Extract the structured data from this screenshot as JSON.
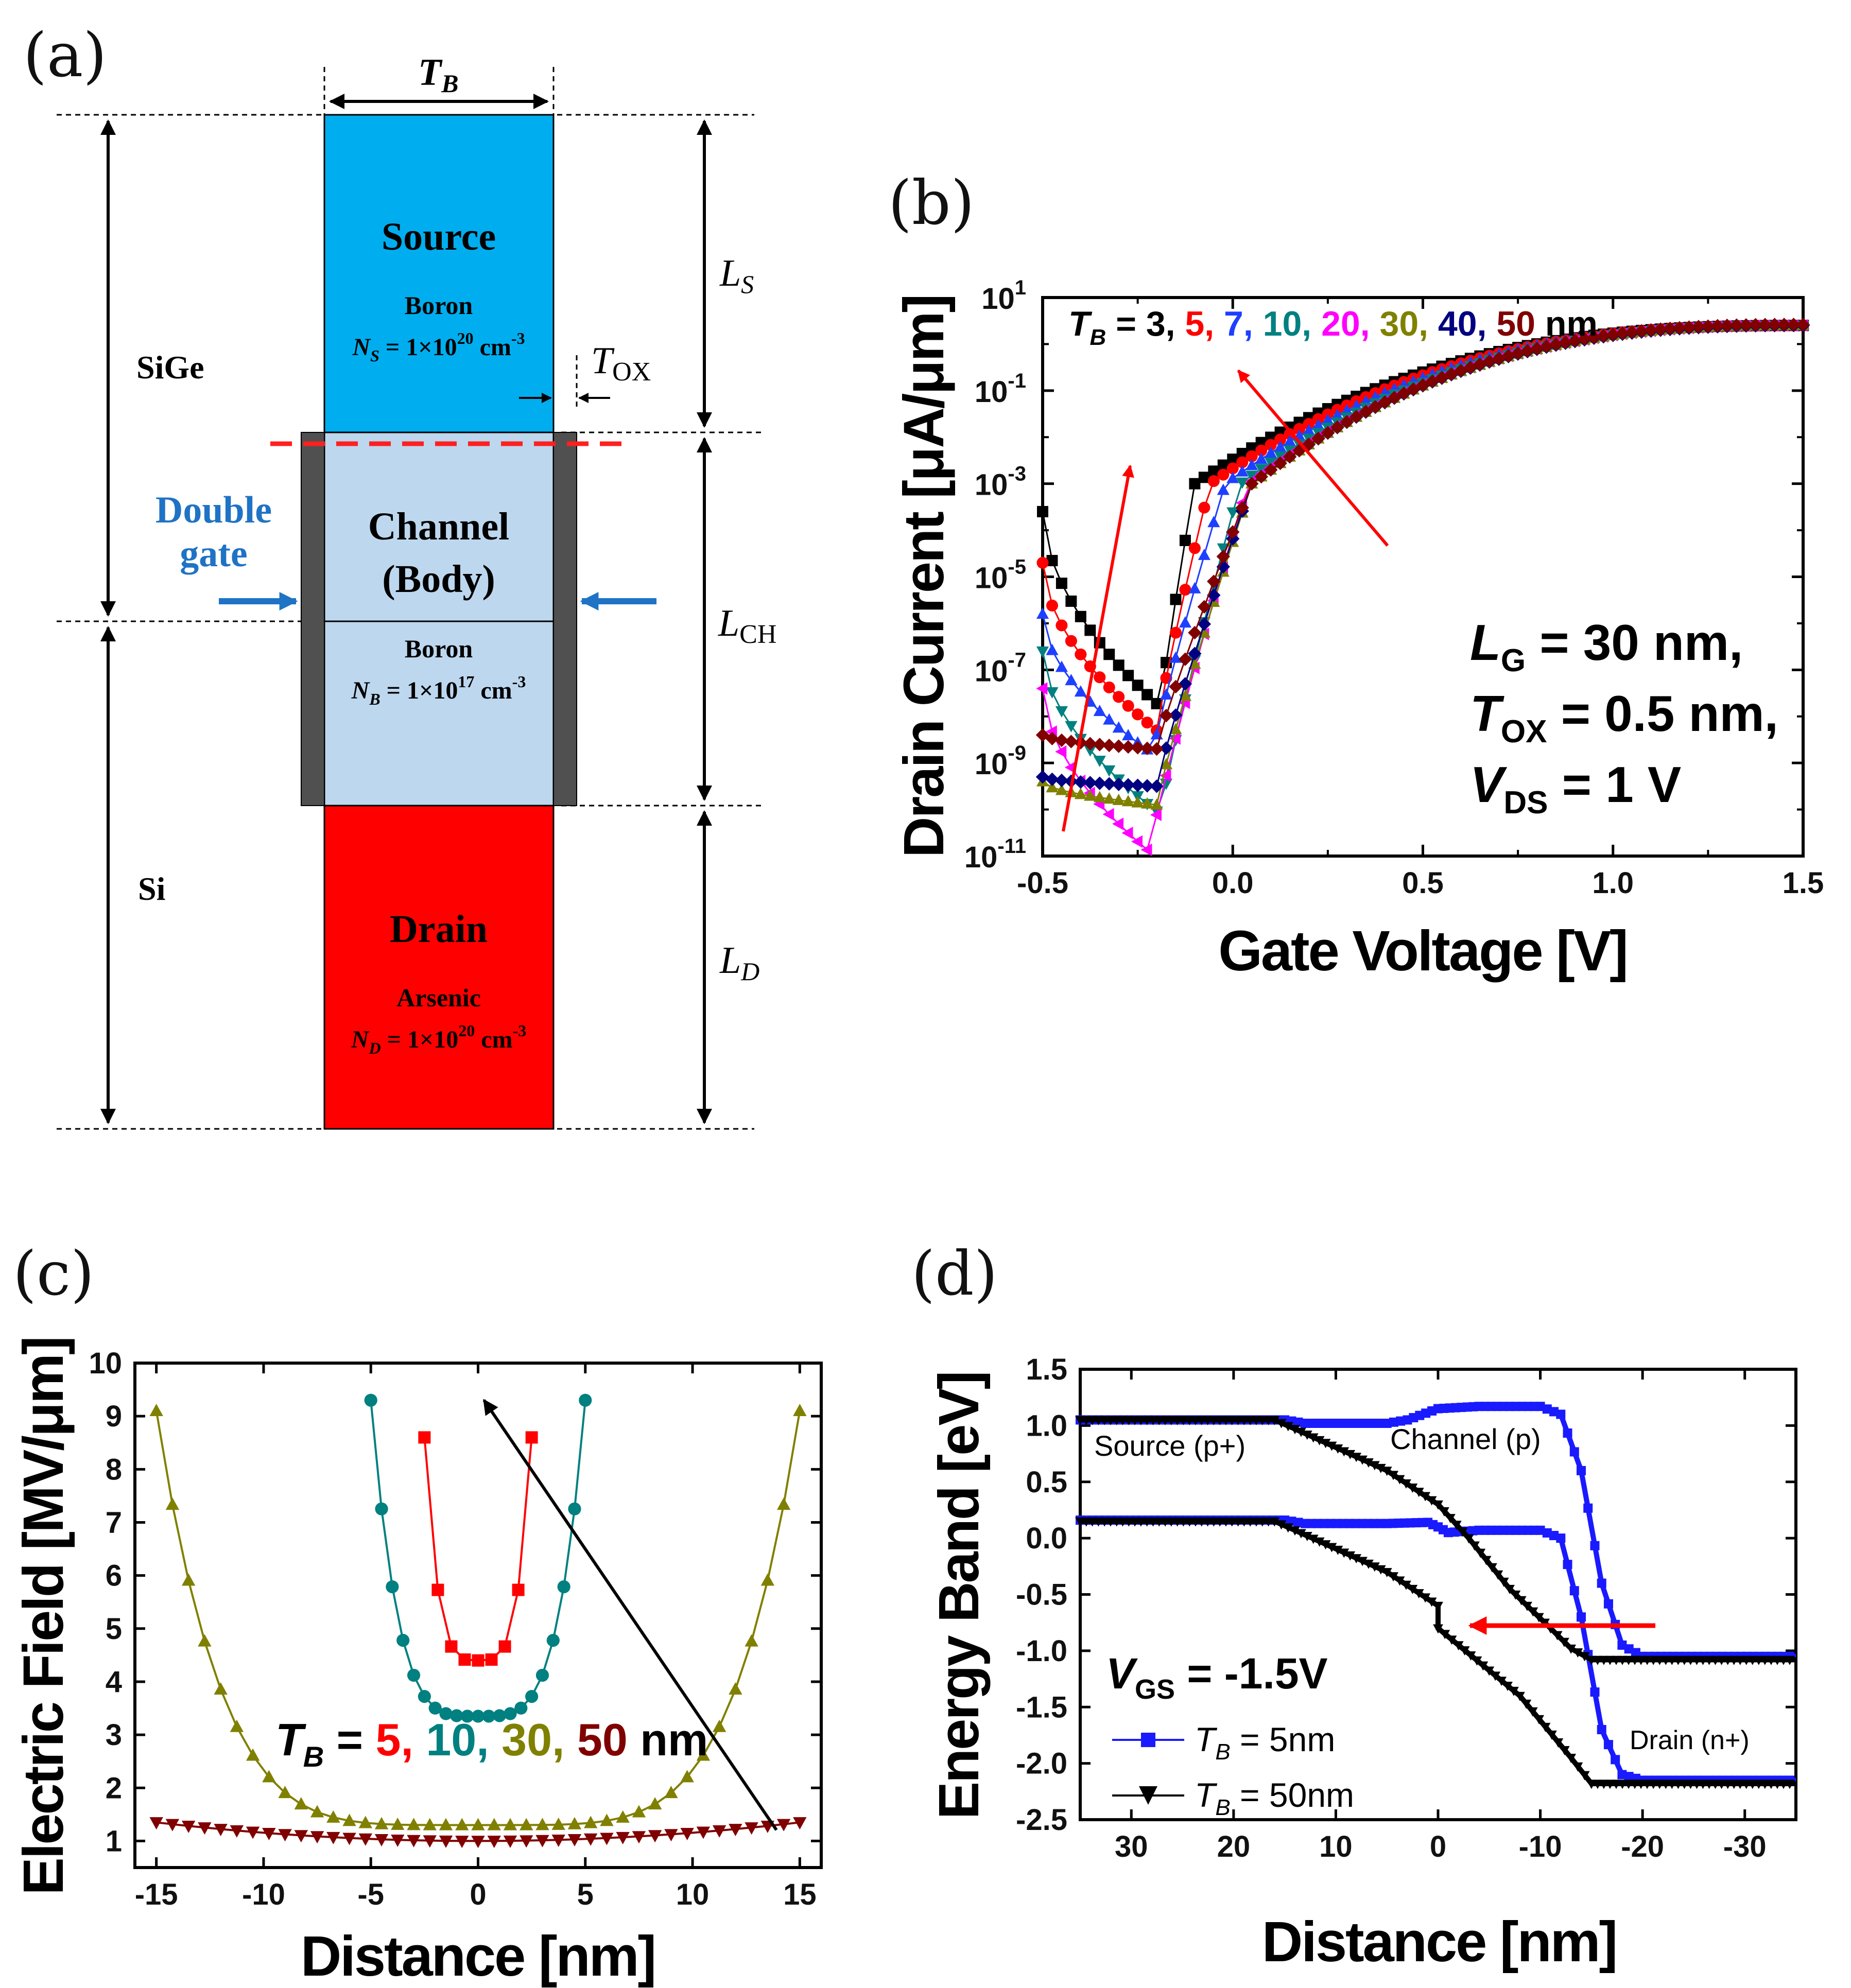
{
  "panel_a": {
    "label": "(a)",
    "tb": "T",
    "tb_sub": "B",
    "ls": "L",
    "ls_sub": "S",
    "lch": "L",
    "lch_sub": "CH",
    "ld": "L",
    "ld_sub": "D",
    "tox": "T",
    "tox_sub": "OX",
    "sige": "SiGe",
    "si": "Si",
    "double_gate_1": "Double",
    "double_gate_2": "gate",
    "source_title": "Source",
    "source_dopant": "Boron",
    "source_conc": "N_S = 1×10^20 cm^-3",
    "source_conc_n": "N",
    "source_conc_sub": "S",
    "source_conc_mid": " = 1×10",
    "source_conc_exp": "20",
    "source_conc_unit": " cm",
    "source_conc_unit_exp": "-3",
    "channel_title_1": "Channel",
    "channel_title_2": "(Body)",
    "body_dopant": "Boron",
    "body_conc_n": "N",
    "body_conc_sub": "B",
    "body_conc_mid": " = 1×10",
    "body_conc_exp": "17",
    "body_conc_unit": " cm",
    "body_conc_unit_exp": "-3",
    "drain_title": "Drain",
    "drain_dopant": "Arsenic",
    "drain_conc_n": "N",
    "drain_conc_sub": "D",
    "drain_conc_mid": " = 1×10",
    "drain_conc_exp": "20",
    "drain_conc_unit": " cm",
    "drain_conc_unit_exp": "-3",
    "colors": {
      "source": "#00aeef",
      "channel": "#bdd7ee",
      "drain": "#ff0000",
      "gate": "#505050",
      "double_gate": "#1f73c5",
      "interface": "#ff2020"
    }
  },
  "chart_data": [
    {
      "panel": "(b)",
      "type": "line",
      "scale": "log-y",
      "xlabel": "Gate Voltage [V]",
      "ylabel": "Drain Current [μA/μm]",
      "xlim": [
        -0.5,
        1.5
      ],
      "ylim_exp": [
        -11,
        1
      ],
      "x_ticks": [
        "-0.5",
        "0.0",
        "0.5",
        "1.0",
        "1.5"
      ],
      "y_tick_exps": [
        "1",
        "-1",
        "-3",
        "-5",
        "-7",
        "-9",
        "-11"
      ],
      "legend_prefix": "T",
      "legend_prefix_sub": "B",
      "legend_eq": " = ",
      "legend_unit": " nm",
      "annotation_lines": [
        {
          "main": "L",
          "sub": "G",
          "rest": " = 30 nm,"
        },
        {
          "main": "T",
          "sub": "OX",
          "rest": " = 0.5 nm,"
        },
        {
          "main": "V",
          "sub": "DS",
          "rest": " = 1 V"
        }
      ],
      "series": [
        {
          "name": "3",
          "color": "#000000",
          "marker": "square",
          "vmin": -0.19,
          "logmin": -7.8,
          "left_start": -3.6,
          "shoulder": -0.1,
          "peak_log": 0.4
        },
        {
          "name": "5",
          "color": "#ff0000",
          "marker": "circle",
          "vmin": -0.2,
          "logmin": -8.3,
          "left_start": -4.7,
          "shoulder": -0.06,
          "peak_log": 0.4
        },
        {
          "name": "7",
          "color": "#1f3fff",
          "marker": "triangle-up",
          "vmin": -0.21,
          "logmin": -8.8,
          "left_start": -5.8,
          "shoulder": -0.02,
          "peak_log": 0.42
        },
        {
          "name": "10",
          "color": "#008080",
          "marker": "triangle-down",
          "vmin": -0.19,
          "logmin": -10.1,
          "left_start": -6.6,
          "shoulder": 0.02,
          "peak_log": 0.4
        },
        {
          "name": "20",
          "color": "#ff00ff",
          "marker": "triangle-left",
          "vmin": -0.22,
          "logmin": -10.9,
          "left_start": -7.4,
          "shoulder": 0.04,
          "peak_log": 0.4
        },
        {
          "name": "30",
          "color": "#808000",
          "marker": "triangle-up",
          "vmin": -0.2,
          "logmin": -9.9,
          "left_start": -9.4,
          "shoulder": 0.05,
          "peak_log": 0.4
        },
        {
          "name": "40",
          "color": "#000080",
          "marker": "diamond",
          "vmin": -0.2,
          "logmin": -9.5,
          "left_start": -9.3,
          "shoulder": 0.05,
          "peak_log": 0.4
        },
        {
          "name": "50",
          "color": "#800000",
          "marker": "diamond",
          "vmin": -0.2,
          "logmin": -8.7,
          "left_start": -8.4,
          "shoulder": 0.05,
          "peak_log": 0.42
        }
      ]
    },
    {
      "panel": "(c)",
      "type": "line",
      "xlabel": "Distance [nm]",
      "ylabel": "Electric Field [MV/μm]",
      "xlim": [
        -16,
        16
      ],
      "ylim": [
        0.5,
        10
      ],
      "x_ticks": [
        -15,
        -10,
        -5,
        0,
        5,
        10,
        15
      ],
      "y_ticks": [
        1,
        2,
        3,
        4,
        5,
        6,
        7,
        8,
        9,
        10
      ],
      "legend_prefix": "T",
      "legend_prefix_sub": "B",
      "legend_eq": " = ",
      "legend_unit": " nm",
      "series": [
        {
          "name": "5",
          "color": "#ff0000",
          "marker": "square",
          "half": 2.5,
          "min": 4.4,
          "edge": 8.6,
          "p": 4,
          "n": 9
        },
        {
          "name": "10",
          "color": "#008080",
          "marker": "circle",
          "half": 5,
          "min": 3.35,
          "edge": 9.3,
          "p": 4,
          "n": 21
        },
        {
          "name": "30",
          "color": "#808000",
          "marker": "triangle-up",
          "half": 15,
          "min": 1.3,
          "edge": 9.1,
          "p": 5,
          "n": 41
        },
        {
          "name": "50",
          "color": "#800000",
          "marker": "triangle-down",
          "half": 15,
          "min": 1.0,
          "edge": 1.35,
          "p": 2,
          "n": 41
        }
      ]
    },
    {
      "panel": "(d)",
      "type": "line",
      "xlabel": "Distance [nm]",
      "ylabel": "Energy Band [eV]",
      "xlim": [
        35,
        -35
      ],
      "ylim": [
        -2.5,
        1.5
      ],
      "x_ticks": [
        "30",
        "20",
        "10",
        "0",
        "-10",
        "-20",
        "-30"
      ],
      "x_tick_values": [
        30,
        20,
        10,
        0,
        -10,
        -20,
        -30
      ],
      "y_ticks": [
        "1.5",
        "1.0",
        "0.5",
        "0.0",
        "-0.5",
        "-1.0",
        "-1.5",
        "-2.0",
        "-2.5"
      ],
      "y_tick_values": [
        1.5,
        1.0,
        0.5,
        0.0,
        -0.5,
        -1.0,
        -1.5,
        -2.0,
        -2.5
      ],
      "region_source": "Source (p+)",
      "region_channel": "Channel (p)",
      "region_drain": "Drain (n+)",
      "vgs_main": "V",
      "vgs_sub": "GS",
      "vgs_rest": " = -1.5V",
      "legend": [
        {
          "main": "T",
          "sub": "B",
          "rest": " = 5nm",
          "color": "#1a1aff",
          "marker": "square"
        },
        {
          "main": "T",
          "sub": "B",
          "rest": " = 50nm",
          "color": "#000000",
          "marker": "triangle-down"
        }
      ],
      "series": [
        {
          "name": "TB=5nm Ec",
          "color": "#1a1aff",
          "points": [
            [
              35,
              1.05
            ],
            [
              15,
              1.05
            ],
            [
              13,
              1.02
            ],
            [
              5,
              1.02
            ],
            [
              3,
              1.05
            ],
            [
              0,
              1.15
            ],
            [
              -4,
              1.17
            ],
            [
              -10,
              1.17
            ],
            [
              -12,
              1.1
            ],
            [
              -14,
              0.6
            ],
            [
              -16,
              -0.4
            ],
            [
              -18,
              -0.95
            ],
            [
              -20,
              -1.05
            ],
            [
              -35,
              -1.05
            ]
          ]
        },
        {
          "name": "TB=5nm Ev",
          "color": "#1a1aff",
          "points": [
            [
              35,
              0.16
            ],
            [
              15,
              0.16
            ],
            [
              13,
              0.13
            ],
            [
              5,
              0.13
            ],
            [
              1,
              0.14
            ],
            [
              0,
              0.1
            ],
            [
              -1,
              0.05
            ],
            [
              -4,
              0.07
            ],
            [
              -10,
              0.07
            ],
            [
              -12,
              0.0
            ],
            [
              -14,
              -0.7
            ],
            [
              -16,
              -1.7
            ],
            [
              -18,
              -2.1
            ],
            [
              -20,
              -2.15
            ],
            [
              -35,
              -2.15
            ]
          ]
        },
        {
          "name": "TB=50nm Ec",
          "color": "#000000",
          "points": [
            [
              35,
              1.05
            ],
            [
              16,
              1.05
            ],
            [
              14,
              0.97
            ],
            [
              5,
              0.6
            ],
            [
              0,
              0.3
            ],
            [
              -3,
              0.0
            ],
            [
              -7,
              -0.45
            ],
            [
              -11,
              -0.8
            ],
            [
              -13,
              -0.98
            ],
            [
              -15,
              -1.08
            ],
            [
              -35,
              -1.08
            ]
          ]
        },
        {
          "name": "TB=50nm Ev",
          "color": "#000000",
          "points": [
            [
              35,
              0.15
            ],
            [
              16,
              0.15
            ],
            [
              14,
              0.07
            ],
            [
              5,
              -0.3
            ],
            [
              0,
              -0.6
            ],
            [
              0,
              -0.8
            ],
            [
              -2,
              -0.95
            ],
            [
              -8,
              -1.4
            ],
            [
              -13,
              -1.95
            ],
            [
              -15,
              -2.18
            ],
            [
              -35,
              -2.18
            ]
          ]
        }
      ]
    }
  ]
}
